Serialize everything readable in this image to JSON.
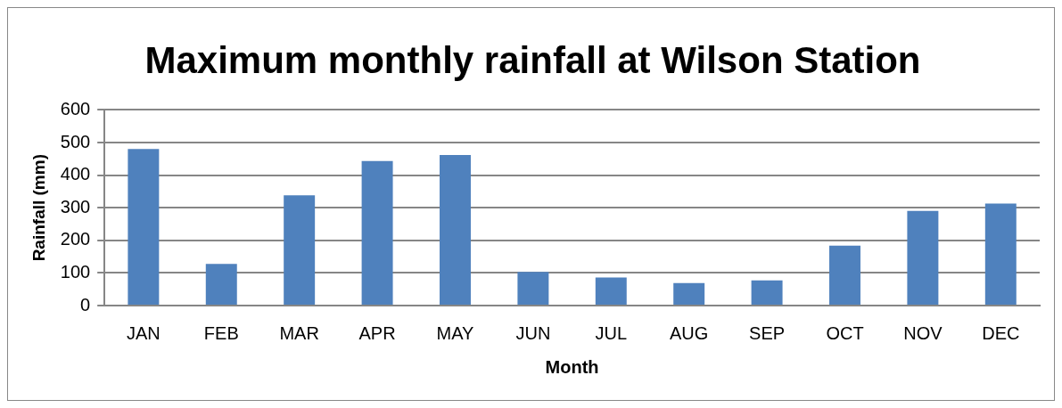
{
  "chart_data": {
    "type": "bar",
    "title": "Maximum monthly rainfall at Wilson Station",
    "xlabel": "Month",
    "ylabel": "Rainfall (mm)",
    "categories": [
      "JAN",
      "FEB",
      "MAR",
      "APR",
      "MAY",
      "JUN",
      "JUL",
      "AUG",
      "SEP",
      "OCT",
      "NOV",
      "DEC"
    ],
    "values": [
      480,
      128,
      338,
      443,
      462,
      103,
      86,
      69,
      77,
      184,
      290,
      313
    ],
    "color": "#4f81bd",
    "ylim": [
      0,
      600
    ],
    "yticks": [
      0,
      100,
      200,
      300,
      400,
      500,
      600
    ],
    "grid": "y",
    "legend": false
  }
}
